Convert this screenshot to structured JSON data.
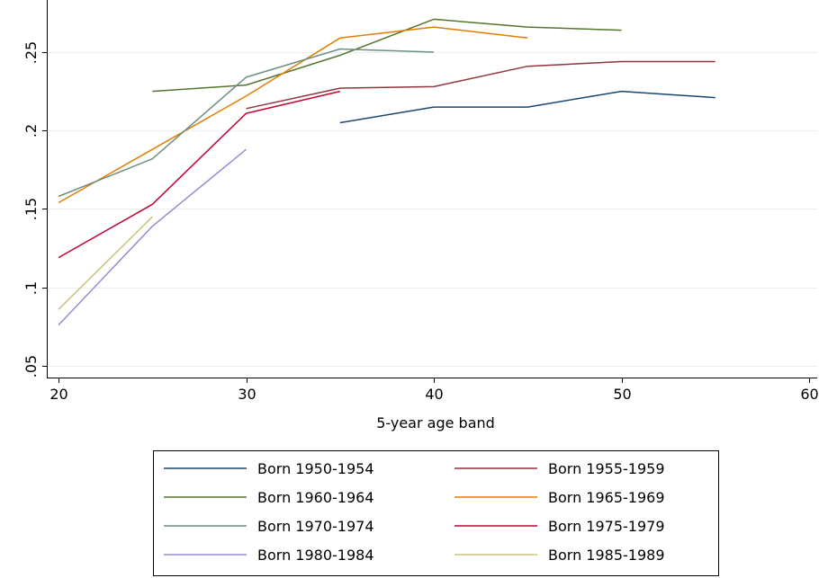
{
  "chart_data": {
    "type": "line",
    "title": "",
    "xlabel": "5-year age band",
    "ylabel": "",
    "xlim": [
      20,
      60
    ],
    "ylim": [
      0.05,
      0.27
    ],
    "xticks": [
      20,
      30,
      40,
      50,
      60
    ],
    "yticks": [
      0.05,
      0.1,
      0.15,
      0.2,
      0.25
    ],
    "xtick_labels": [
      "20",
      "30",
      "40",
      "50",
      "60"
    ],
    "ytick_labels": [
      ".05",
      ".1",
      ".15",
      ".2",
      ".25"
    ],
    "grid": true,
    "legend_placement": "bottom, outside, two columns",
    "series": [
      {
        "name": "Born 1950-1954",
        "color": "#1a476f",
        "x": [
          35,
          40,
          45,
          50,
          55
        ],
        "y": [
          0.205,
          0.215,
          0.215,
          0.225,
          0.221
        ]
      },
      {
        "name": "Born 1955-1959",
        "color": "#90353b",
        "x": [
          30,
          35,
          40,
          45,
          50,
          55
        ],
        "y": [
          0.214,
          0.227,
          0.228,
          0.241,
          0.244,
          0.244
        ]
      },
      {
        "name": "Born 1960-1964",
        "color": "#55752f",
        "x": [
          25,
          30,
          35,
          40,
          45,
          50
        ],
        "y": [
          0.225,
          0.229,
          0.248,
          0.271,
          0.266,
          0.264
        ]
      },
      {
        "name": "Born 1965-1969",
        "color": "#e37e00",
        "x": [
          20,
          25,
          30,
          35,
          40,
          45
        ],
        "y": [
          0.154,
          0.188,
          0.222,
          0.259,
          0.266,
          0.259
        ]
      },
      {
        "name": "Born 1970-1974",
        "color": "#6e8e84",
        "x": [
          20,
          25,
          30,
          35,
          40
        ],
        "y": [
          0.158,
          0.182,
          0.234,
          0.252,
          0.25
        ]
      },
      {
        "name": "Born 1975-1979",
        "color": "#c10534",
        "x": [
          20,
          25,
          30,
          35
        ],
        "y": [
          0.119,
          0.153,
          0.211,
          0.225
        ]
      },
      {
        "name": "Born 1980-1984",
        "color": "#938dd2",
        "x": [
          20,
          25,
          30
        ],
        "y": [
          0.076,
          0.139,
          0.188
        ]
      },
      {
        "name": "Born 1985-1989",
        "color": "#cac27e",
        "x": [
          20,
          25
        ],
        "y": [
          0.086,
          0.145
        ]
      }
    ]
  }
}
